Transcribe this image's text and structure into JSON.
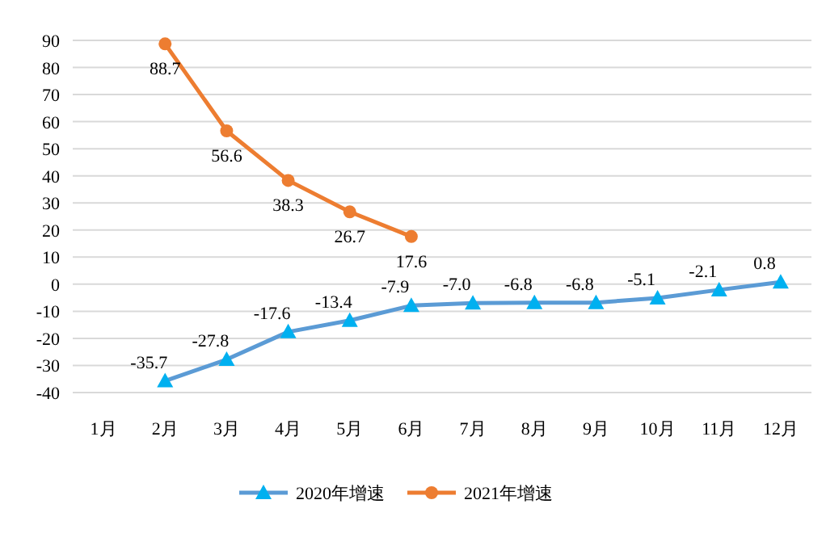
{
  "chart_data": {
    "type": "line",
    "categories": [
      "1月",
      "2月",
      "3月",
      "4月",
      "5月",
      "6月",
      "7月",
      "8月",
      "9月",
      "10月",
      "11月",
      "12月"
    ],
    "series": [
      {
        "name": "2020年增速",
        "color": "#5b9bd5",
        "marker": "triangle",
        "values": [
          null,
          -35.7,
          -27.8,
          -17.6,
          -13.4,
          -7.9,
          -7.0,
          -6.8,
          -6.8,
          -5.1,
          -2.1,
          0.8
        ],
        "value_labels": [
          null,
          "-35.7",
          "-27.8",
          "-17.6",
          "-13.4",
          "-7.9",
          "-7.0",
          "-6.8",
          "-6.8",
          "-5.1",
          "-2.1",
          "0.8"
        ]
      },
      {
        "name": "2021年增速",
        "color": "#ed7d31",
        "marker": "circle",
        "values": [
          null,
          88.7,
          56.6,
          38.3,
          26.7,
          17.6,
          null,
          null,
          null,
          null,
          null,
          null
        ],
        "value_labels": [
          null,
          "88.7",
          "56.6",
          "38.3",
          "26.7",
          "17.6",
          null,
          null,
          null,
          null,
          null,
          null
        ]
      }
    ],
    "ylim": [
      -40,
      90
    ],
    "yticks": [
      -40,
      -30,
      -20,
      -10,
      0,
      10,
      20,
      30,
      40,
      50,
      60,
      70,
      80,
      90
    ],
    "grid": "y",
    "legend": "bottom"
  }
}
